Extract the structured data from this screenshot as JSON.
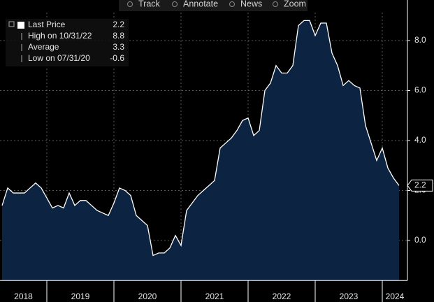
{
  "chart_data": {
    "type": "area",
    "toolbar": [
      "Track",
      "Annotate",
      "News",
      "Zoom"
    ],
    "legend": [
      {
        "label": "Last Price",
        "value": 2.2
      },
      {
        "label": "High on 10/31/22",
        "value": 8.8
      },
      {
        "label": "Average",
        "value": 3.3
      },
      {
        "label": "Low on 07/31/20",
        "value": -0.6
      }
    ],
    "year_labels": [
      "2018",
      "2019",
      "2020",
      "2021",
      "2022",
      "2023",
      "2024"
    ],
    "series": [
      {
        "name": "Last Price",
        "color": "#ffffff",
        "fill": "#0c2341",
        "values": [
          1.4,
          2.1,
          1.9,
          1.9,
          1.9,
          2.1,
          2.3,
          2.1,
          1.7,
          1.3,
          1.4,
          1.3,
          1.9,
          1.4,
          1.6,
          1.6,
          1.4,
          1.2,
          1.1,
          1.0,
          1.5,
          2.1,
          2.0,
          1.8,
          1.0,
          0.8,
          0.6,
          -0.6,
          -0.5,
          -0.5,
          -0.3,
          0.2,
          -0.2,
          1.2,
          1.5,
          1.8,
          2.0,
          2.2,
          2.4,
          3.7,
          3.9,
          4.1,
          4.4,
          4.8,
          4.9,
          4.2,
          4.4,
          6.0,
          6.3,
          7.0,
          6.7,
          6.7,
          7.0,
          8.6,
          8.8,
          8.8,
          8.2,
          8.7,
          8.7,
          7.5,
          7.0,
          6.2,
          6.4,
          6.2,
          6.1,
          4.6,
          3.9,
          3.2,
          3.7,
          2.9,
          2.5,
          2.2
        ]
      }
    ],
    "ylim": [
      -1.6,
      9.6
    ],
    "yticks": [
      {
        "value": 0,
        "label": "0.0"
      },
      {
        "value": 2,
        "label": "2.0"
      },
      {
        "value": 4,
        "label": "4.0"
      },
      {
        "value": 6,
        "label": "6.0"
      },
      {
        "value": 8,
        "label": "8.0"
      }
    ],
    "grid": true
  }
}
